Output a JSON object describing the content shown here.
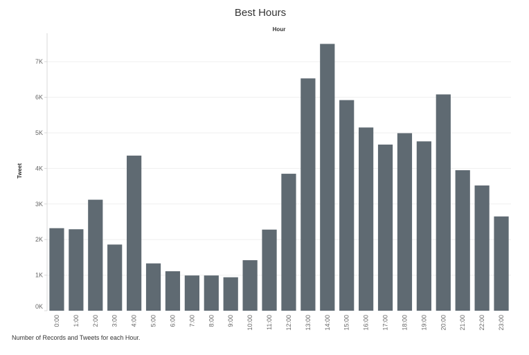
{
  "chart_data": {
    "type": "bar",
    "title": "Best Hours",
    "column_header": "Hour",
    "ylabel": "Tweet",
    "ylim": [
      0,
      7800
    ],
    "yticks": [
      0,
      1000,
      2000,
      3000,
      4000,
      5000,
      6000,
      7000
    ],
    "ytick_labels": [
      "0K",
      "1K",
      "2K",
      "3K",
      "4K",
      "5K",
      "6K",
      "7K"
    ],
    "grid": true,
    "categories": [
      "0:00",
      "1:00",
      "2:00",
      "3:00",
      "4:00",
      "5:00",
      "6:00",
      "7:00",
      "8:00",
      "9:00",
      "10:00",
      "11:00",
      "12:00",
      "13:00",
      "14:00",
      "15:00",
      "16:00",
      "17:00",
      "18:00",
      "19:00",
      "20:00",
      "21:00",
      "22:00",
      "23:00"
    ],
    "values": [
      2320,
      2290,
      3120,
      1860,
      4360,
      1330,
      1110,
      990,
      990,
      940,
      1420,
      2280,
      3850,
      6530,
      7500,
      5920,
      5150,
      4670,
      4990,
      4760,
      6080,
      3950,
      3520,
      2650
    ],
    "bar_color": "#5f6a72",
    "caption": "Number of Records and Tweets for each Hour."
  }
}
